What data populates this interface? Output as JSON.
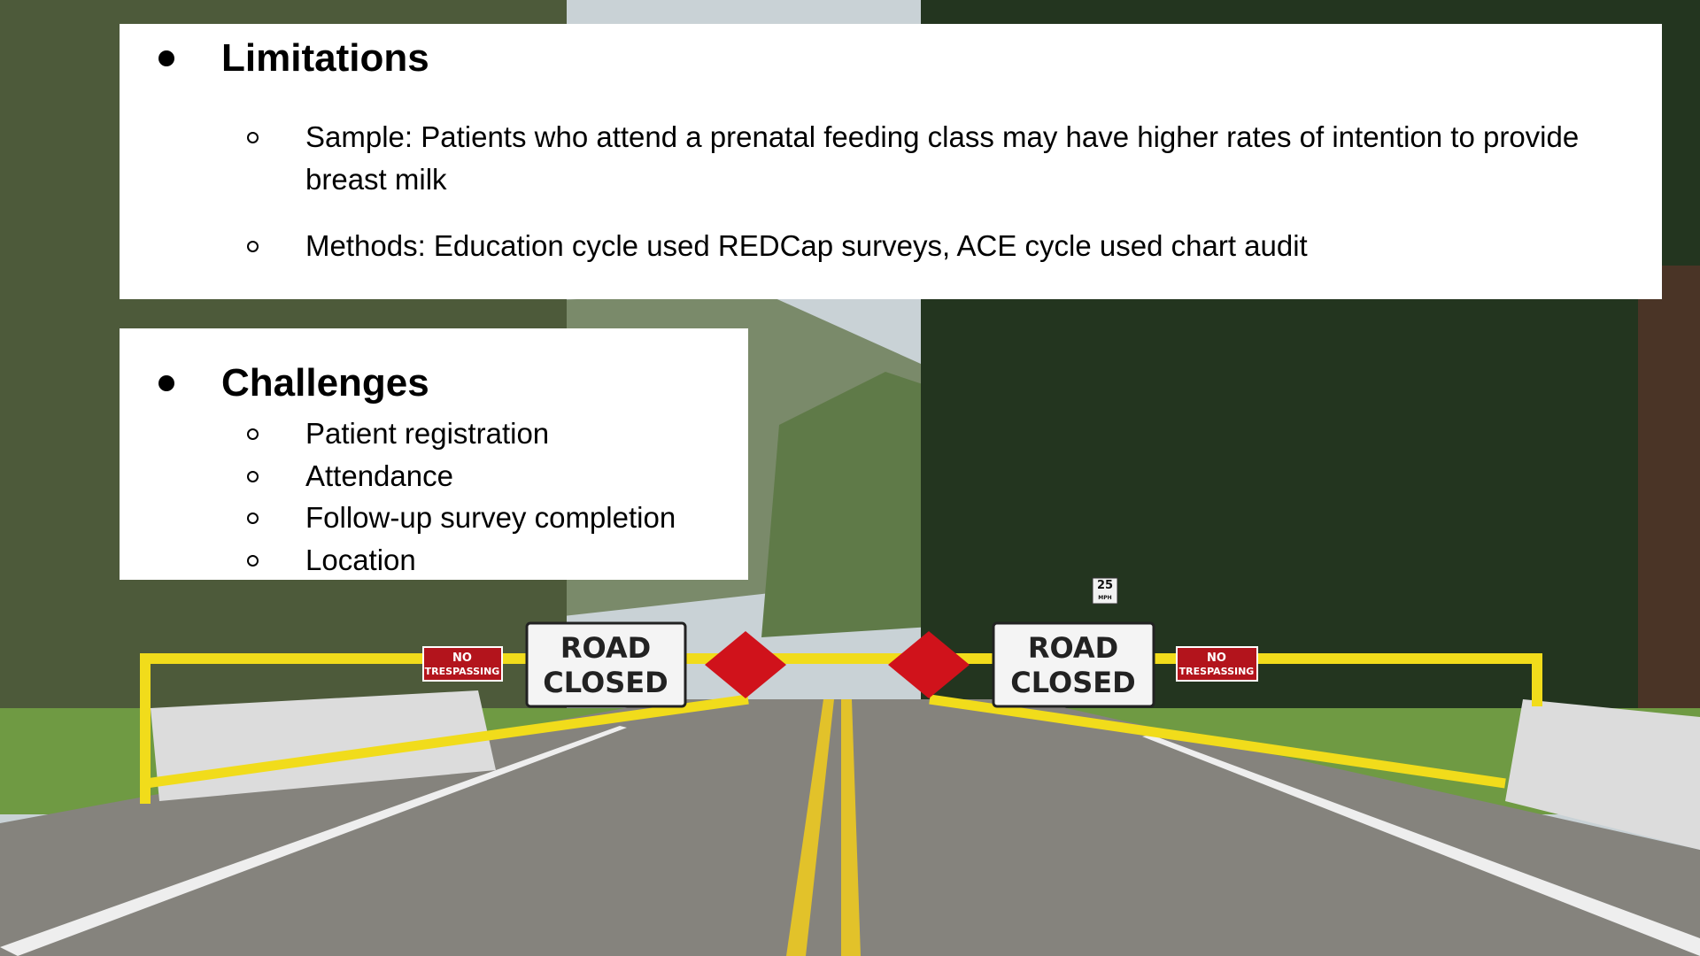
{
  "limitations": {
    "heading": "Limitations",
    "items": [
      "Sample: Patients who attend a prenatal feeding class may have higher rates of intention to provide breast milk",
      "Methods: Education cycle used REDCap surveys, ACE cycle used chart audit"
    ]
  },
  "challenges": {
    "heading": "Challenges",
    "items": [
      "Patient registration",
      "Attendance",
      "Follow-up survey completion",
      "Location"
    ]
  },
  "scene": {
    "road_signs": [
      [
        "ROAD",
        "CLOSED"
      ],
      [
        "ROAD",
        "CLOSED"
      ]
    ],
    "no_trespassing_signs": [
      [
        "NO",
        "TRESPASSING"
      ],
      [
        "NO",
        "TRESPASSING"
      ]
    ],
    "speed_sign": [
      "25",
      "MPH"
    ]
  }
}
